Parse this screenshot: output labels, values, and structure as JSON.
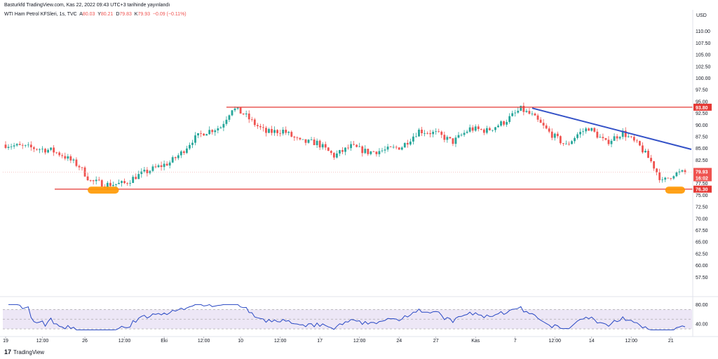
{
  "header": {
    "source": "Basturkfd TradingView.com, Kas 22, 2022 09:43 UTC+3 tarihinde yayınlandı",
    "symbol": "WTI Ham Petrol KFSleri, 1s, TVC",
    "ohlc": {
      "open_label": "A",
      "open": "80.03",
      "high_label": "Y",
      "high": "80.21",
      "low_label": "D",
      "low": "79.83",
      "close_label": "K",
      "close": "79.93",
      "change": "−0.09 (−0.11%)"
    }
  },
  "branding": {
    "logo_text": "TradingView",
    "logo_mark": "17"
  },
  "colors": {
    "up": "#26a69a",
    "down": "#ef5350",
    "resistance": "#e53935",
    "trendline": "#3351c7",
    "highlight": "#ff9800",
    "rsi_line": "#2848c4",
    "rsi_band": "#ede7f6",
    "price_line": "#f4b6b6",
    "price_label": "#ef5350",
    "level_label": "#e53935"
  },
  "chart_data": [
    {
      "type": "candlestick",
      "title": "WTI Ham Petrol KFSleri, 1s, TVC",
      "ylabel": "USD",
      "ylim": [
        53.5,
        112.5
      ],
      "y_ticks": [
        "57.50",
        "60.00",
        "62.50",
        "65.00",
        "67.50",
        "70.00",
        "72.50",
        "75.00",
        "77.50",
        "80.00",
        "82.50",
        "85.00",
        "87.50",
        "90.00",
        "92.50",
        "95.00",
        "97.50",
        "100.00",
        "102.50",
        "105.00",
        "107.50",
        "110.00"
      ],
      "x_ticks": [
        "19",
        "12:00",
        "26",
        "12:00",
        "Eki",
        "12:00",
        "10",
        "12:00",
        "17",
        "12:00",
        "24",
        "27",
        "Kas",
        "7",
        "12:00",
        "14",
        "12:00",
        "21"
      ],
      "path_anchors": [
        {
          "i": 0,
          "y": 85.8
        },
        {
          "i": 8,
          "y": 85.2
        },
        {
          "i": 16,
          "y": 84.6
        },
        {
          "i": 20,
          "y": 83.6
        },
        {
          "i": 26,
          "y": 81.2
        },
        {
          "i": 30,
          "y": 78.0
        },
        {
          "i": 36,
          "y": 77.3
        },
        {
          "i": 42,
          "y": 77.5
        },
        {
          "i": 46,
          "y": 79.0
        },
        {
          "i": 52,
          "y": 80.6
        },
        {
          "i": 58,
          "y": 82.0
        },
        {
          "i": 62,
          "y": 84.0
        },
        {
          "i": 66,
          "y": 86.8
        },
        {
          "i": 70,
          "y": 88.4
        },
        {
          "i": 76,
          "y": 89.6
        },
        {
          "i": 80,
          "y": 93.6
        },
        {
          "i": 84,
          "y": 92.4
        },
        {
          "i": 88,
          "y": 90.2
        },
        {
          "i": 92,
          "y": 88.4
        },
        {
          "i": 98,
          "y": 88.8
        },
        {
          "i": 104,
          "y": 86.4
        },
        {
          "i": 110,
          "y": 86.2
        },
        {
          "i": 116,
          "y": 83.4
        },
        {
          "i": 122,
          "y": 85.4
        },
        {
          "i": 128,
          "y": 84.2
        },
        {
          "i": 134,
          "y": 84.6
        },
        {
          "i": 140,
          "y": 85.4
        },
        {
          "i": 146,
          "y": 88.8
        },
        {
          "i": 152,
          "y": 88.2
        },
        {
          "i": 158,
          "y": 86.4
        },
        {
          "i": 164,
          "y": 89.2
        },
        {
          "i": 170,
          "y": 88.8
        },
        {
          "i": 176,
          "y": 90.6
        },
        {
          "i": 182,
          "y": 93.4
        },
        {
          "i": 186,
          "y": 92.0
        },
        {
          "i": 192,
          "y": 88.4
        },
        {
          "i": 198,
          "y": 85.6
        },
        {
          "i": 202,
          "y": 88.0
        },
        {
          "i": 206,
          "y": 89.4
        },
        {
          "i": 212,
          "y": 86.2
        },
        {
          "i": 218,
          "y": 88.4
        },
        {
          "i": 224,
          "y": 85.4
        },
        {
          "i": 228,
          "y": 82.2
        },
        {
          "i": 232,
          "y": 77.8
        },
        {
          "i": 236,
          "y": 79.6
        },
        {
          "i": 240,
          "y": 79.9
        }
      ],
      "candle_count": 241,
      "resistance_level": 93.8,
      "support_level": 76.3,
      "last_price": 79.93,
      "price_labels": {
        "resistance": "93.80",
        "last": "79.93",
        "countdown": "16:02",
        "support": "76.30"
      },
      "trendline": {
        "from": {
          "i": 186,
          "y": 93.6
        },
        "to": {
          "i": 240,
          "y": 84.8
        }
      },
      "highlights": [
        {
          "i_start": 29,
          "i_end": 40,
          "y": 76.1
        },
        {
          "i_start": 233,
          "i_end": 240,
          "y": 76.1
        }
      ]
    },
    {
      "type": "line",
      "title": "RSI",
      "ylim": [
        20,
        95
      ],
      "y_ticks": [
        "40.00",
        "80.00"
      ],
      "band": [
        30,
        70
      ],
      "midline": 50,
      "series": [
        {
          "values": "computed"
        }
      ]
    }
  ]
}
